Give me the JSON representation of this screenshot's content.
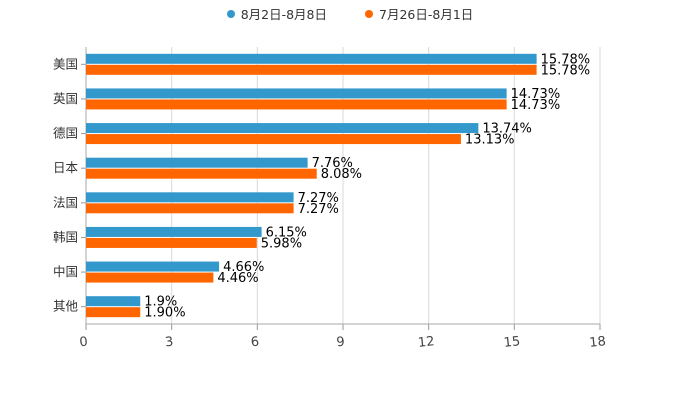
{
  "chart_data": {
    "type": "bar",
    "orientation": "horizontal",
    "categories": [
      "美国",
      "英国",
      "德国",
      "日本",
      "法国",
      "韩国",
      "中国",
      "其他"
    ],
    "series": [
      {
        "name": "8月2日-8月8日",
        "color": "#3399cc",
        "values": [
          15.78,
          14.73,
          13.74,
          7.76,
          7.27,
          6.15,
          4.66,
          1.9
        ],
        "labels": [
          "15.78%",
          "14.73%",
          "13.74%",
          "7.76%",
          "7.27%",
          "6.15%",
          "4.66%",
          "1.9%"
        ]
      },
      {
        "name": "7月26日-8月1日",
        "color": "#ff6600",
        "values": [
          15.78,
          14.73,
          13.13,
          8.08,
          7.27,
          5.98,
          4.46,
          1.9
        ],
        "labels": [
          "15.78%",
          "14.73%",
          "13.13%",
          "8.08%",
          "7.27%",
          "5.98%",
          "4.46%",
          "1.90%"
        ]
      }
    ],
    "xlim": [
      0,
      18
    ],
    "ticks": [
      "0",
      "3",
      "6",
      "9",
      "12",
      "15",
      "18"
    ],
    "tick_values": [
      0,
      3,
      6,
      9,
      12,
      15,
      18
    ],
    "grid": true,
    "legend_position": "top"
  }
}
